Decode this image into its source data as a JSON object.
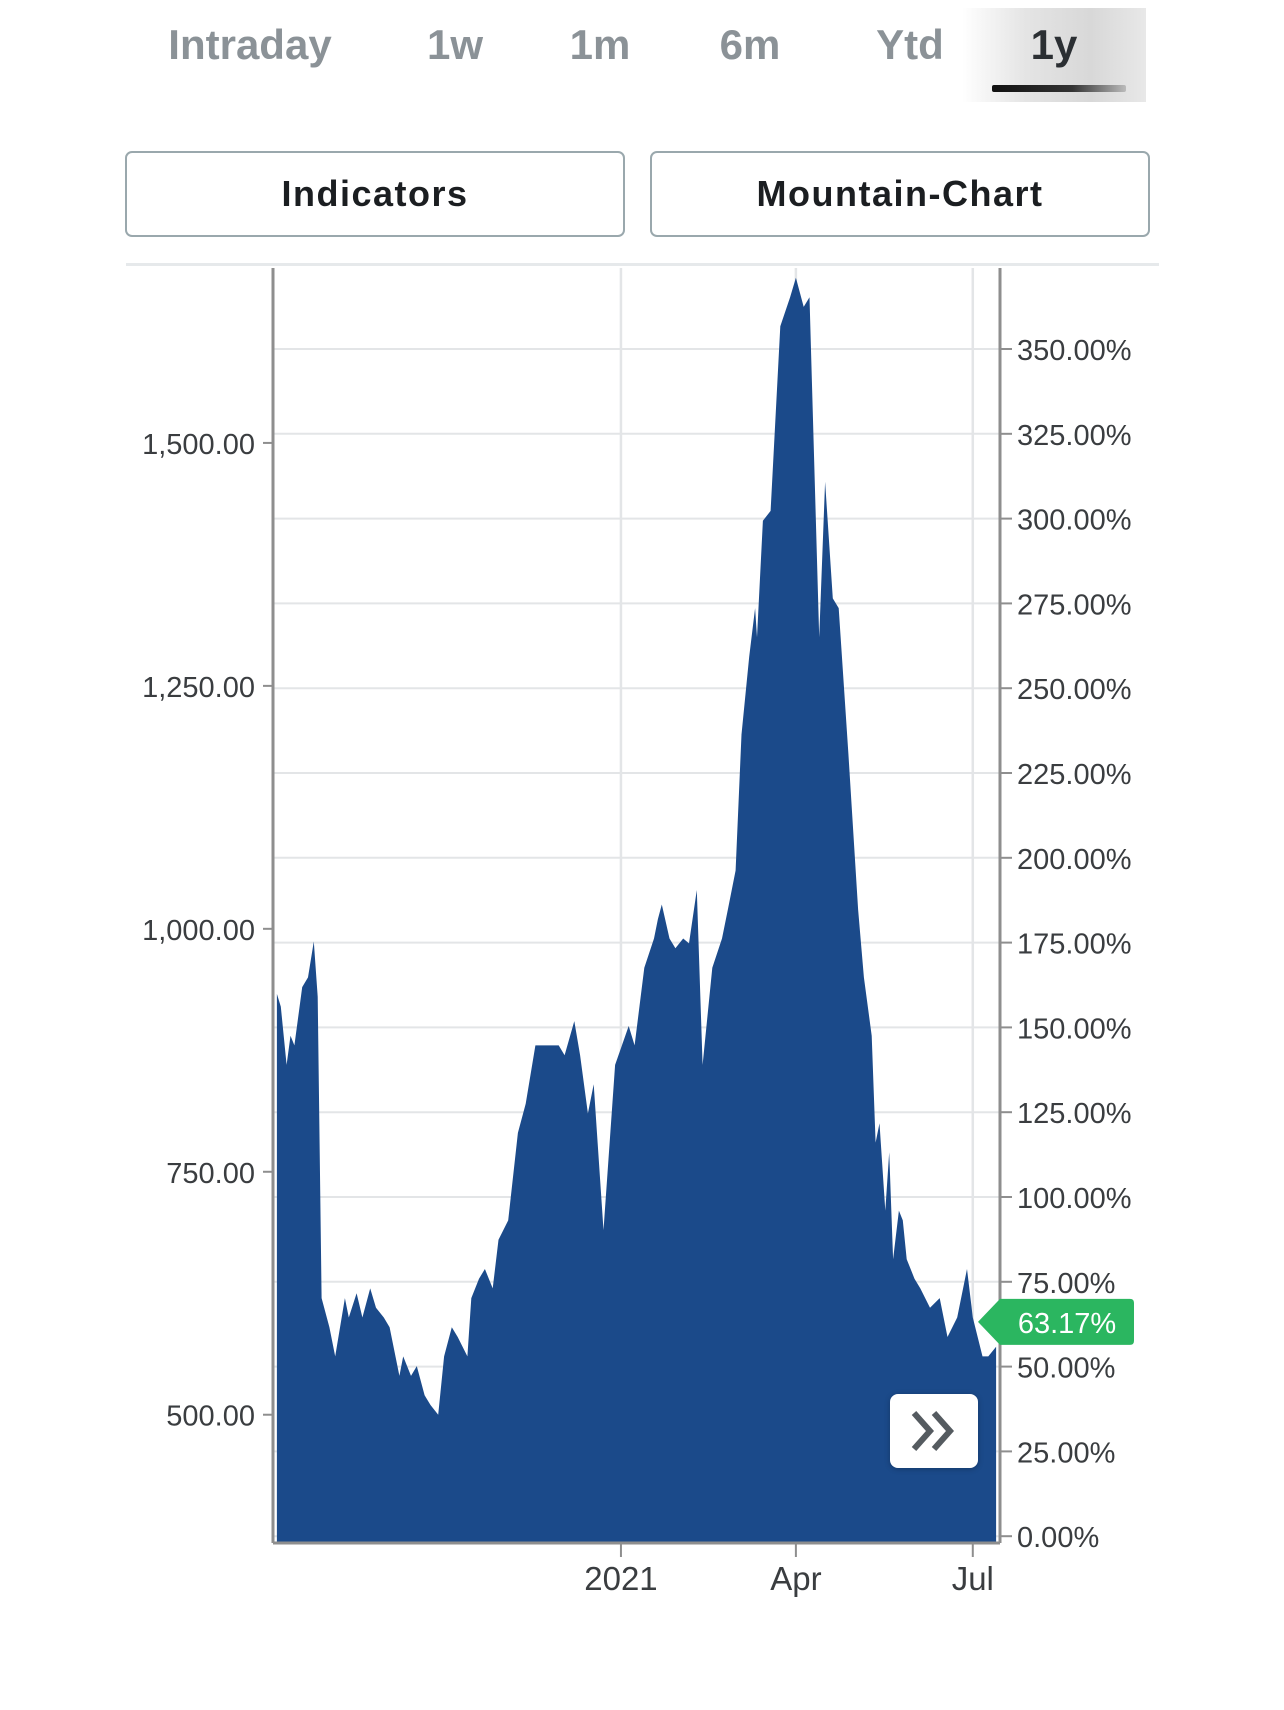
{
  "tabs": [
    {
      "label": "Intraday"
    },
    {
      "label": "1w"
    },
    {
      "label": "1m"
    },
    {
      "label": "6m"
    },
    {
      "label": "Ytd"
    },
    {
      "label": "1y"
    }
  ],
  "active_tab": "1y",
  "buttons": {
    "indicators": "Indicators",
    "chart_type": "Mountain-Chart"
  },
  "current_badge": {
    "text": "63.17%",
    "color": "#2bb660"
  },
  "colors": {
    "area": "#1b4a8a",
    "grid": "#e3e5e7",
    "axis": "#8e8e8e"
  },
  "scroll_icon": "double-chevron-right-icon",
  "chart_data": {
    "type": "area",
    "title": "",
    "x_ticks": [
      "2021",
      "Apr",
      "Jul"
    ],
    "y_left": {
      "ticks": [
        "1,500.00",
        "1,250.00",
        "1,000.00",
        "750.00",
        "500.00"
      ],
      "values": [
        1500,
        1250,
        1000,
        750,
        500
      ]
    },
    "y_right": {
      "ticks": [
        "350.00%",
        "325.00%",
        "300.00%",
        "275.00%",
        "250.00%",
        "225.00%",
        "200.00%",
        "175.00%",
        "150.00%",
        "125.00%",
        "100.00%",
        "75.00%",
        "50.00%",
        "25.00%",
        "0.00%"
      ],
      "values": [
        350,
        325,
        300,
        275,
        250,
        225,
        200,
        175,
        150,
        125,
        100,
        75,
        50,
        25,
        0
      ]
    },
    "ylim_left": [
      368,
      1680
    ],
    "grid": true,
    "series": [
      {
        "x": [
          "2020-07-08",
          "2020-07-10",
          "2020-07-13",
          "2020-07-15",
          "2020-07-17",
          "2020-07-21",
          "2020-07-24",
          "2020-07-27",
          "2020-07-29",
          "2020-07-31",
          "2020-08-04",
          "2020-08-07",
          "2020-08-12",
          "2020-08-14",
          "2020-08-18",
          "2020-08-21",
          "2020-08-25",
          "2020-08-28",
          "2020-09-01",
          "2020-09-04",
          "2020-09-09",
          "2020-09-11",
          "2020-09-15",
          "2020-09-18",
          "2020-09-22",
          "2020-09-25",
          "2020-09-29",
          "2020-10-02",
          "2020-10-06",
          "2020-10-09",
          "2020-10-14",
          "2020-10-16",
          "2020-10-20",
          "2020-10-23",
          "2020-10-27",
          "2020-10-30",
          "2020-11-04",
          "2020-11-09",
          "2020-11-13",
          "2020-11-18",
          "2020-11-24",
          "2020-11-30",
          "2020-12-03",
          "2020-12-08",
          "2020-12-11",
          "2020-12-15",
          "2020-12-18",
          "2020-12-23",
          "2020-12-29",
          "2021-01-05",
          "2021-01-08",
          "2021-01-13",
          "2021-01-18",
          "2021-01-20",
          "2021-01-22",
          "2021-01-26",
          "2021-01-29",
          "2021-02-02",
          "2021-02-05",
          "2021-02-09",
          "2021-02-12",
          "2021-02-17",
          "2021-02-22",
          "2021-02-25",
          "2021-03-01",
          "2021-03-04",
          "2021-03-08",
          "2021-03-11",
          "2021-03-12",
          "2021-03-15",
          "2021-03-19",
          "2021-03-24",
          "2021-03-29",
          "2021-04-01",
          "2021-04-05",
          "2021-04-08",
          "2021-04-13",
          "2021-04-16",
          "2021-04-20",
          "2021-04-23",
          "2021-04-28",
          "2021-05-03",
          "2021-05-06",
          "2021-05-10",
          "2021-05-12",
          "2021-05-14",
          "2021-05-17",
          "2021-05-19",
          "2021-05-21",
          "2021-05-24",
          "2021-05-26",
          "2021-05-28",
          "2021-06-01",
          "2021-06-04",
          "2021-06-09",
          "2021-06-14",
          "2021-06-18",
          "2021-06-23",
          "2021-06-28",
          "2021-07-01",
          "2021-07-06",
          "2021-07-09",
          "2021-07-13"
        ],
        "y": [
          933,
          920,
          860,
          890,
          880,
          940,
          950,
          987,
          930,
          620,
          590,
          560,
          620,
          600,
          625,
          600,
          630,
          610,
          600,
          590,
          540,
          560,
          540,
          550,
          520,
          510,
          500,
          560,
          590,
          580,
          560,
          620,
          640,
          650,
          630,
          680,
          700,
          790,
          820,
          880,
          880,
          880,
          870,
          905,
          870,
          810,
          840,
          690,
          860,
          900,
          880,
          960,
          990,
          1010,
          1025,
          990,
          980,
          990,
          985,
          1040,
          860,
          960,
          990,
          1020,
          1060,
          1200,
          1280,
          1330,
          1300,
          1420,
          1430,
          1620,
          1650,
          1670,
          1640,
          1650,
          1300,
          1460,
          1340,
          1330,
          1180,
          1020,
          950,
          890,
          780,
          800,
          710,
          770,
          660,
          710,
          700,
          660,
          640,
          630,
          610,
          620,
          580,
          600,
          650,
          600,
          560,
          560,
          570
        ],
        "right_axis_pct_end": 63.17
      }
    ]
  }
}
